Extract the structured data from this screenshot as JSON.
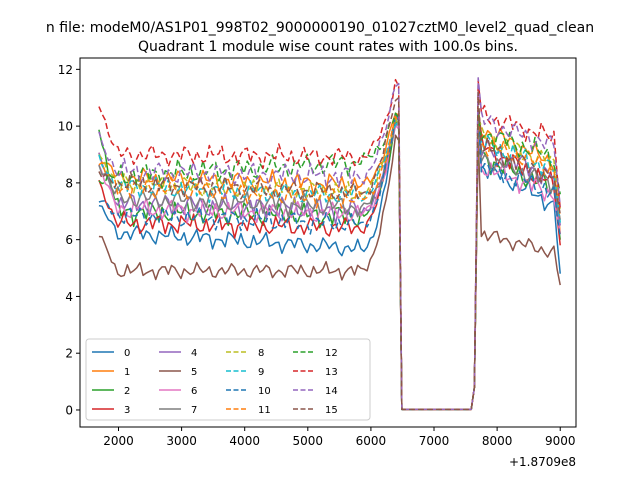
{
  "chart_data": {
    "type": "line",
    "suptitle": "n file: modeM0/AS1P01_998T02_9000000190_01027cztM0_level2_quad_clean",
    "title": "Quadrant 1 module wise count rates with 100.0s bins.",
    "xlabel": "",
    "ylabel": "",
    "x_offset_label": "+1.8709e8",
    "xlim": [
      1390,
      9250
    ],
    "ylim": [
      -0.6,
      12.4
    ],
    "xticks": [
      2000,
      3000,
      4000,
      5000,
      6000,
      7000,
      8000,
      9000
    ],
    "yticks": [
      0,
      2,
      4,
      6,
      8,
      10,
      12
    ],
    "xtick_labels": [
      "2000",
      "3000",
      "4000",
      "5000",
      "6000",
      "7000",
      "8000",
      "9000"
    ],
    "ytick_labels": [
      "0",
      "2",
      "4",
      "6",
      "8",
      "10",
      "12"
    ],
    "legend_location": "lower-left",
    "series": [
      {
        "name": "0",
        "color": "#1f77b4",
        "dash": "solid",
        "start": 7.2,
        "base": 6.3,
        "end": 5.6,
        "peak": 10.4,
        "post": 8.6,
        "post_slope": -1.5,
        "last": 4.8,
        "jitter": 0.35
      },
      {
        "name": "1",
        "color": "#ff7f0e",
        "dash": "solid",
        "start": 9.0,
        "base": 8.2,
        "end": 7.9,
        "peak": 10.6,
        "post": 9.9,
        "post_slope": -1.3,
        "last": 6.2,
        "jitter": 0.4
      },
      {
        "name": "2",
        "color": "#2ca02c",
        "dash": "solid",
        "start": 10.0,
        "base": 7.0,
        "end": 6.8,
        "peak": 10.2,
        "post": 8.9,
        "post_slope": -1.2,
        "last": 6.0,
        "jitter": 0.45
      },
      {
        "name": "3",
        "color": "#d62728",
        "dash": "solid",
        "start": 8.0,
        "base": 6.6,
        "end": 6.4,
        "peak": 10.6,
        "post": 9.3,
        "post_slope": -1.5,
        "last": 5.8,
        "jitter": 0.4
      },
      {
        "name": "4",
        "color": "#9467bd",
        "dash": "solid",
        "start": 9.0,
        "base": 7.3,
        "end": 7.0,
        "peak": 10.3,
        "post": 9.2,
        "post_slope": -1.1,
        "last": 6.5,
        "jitter": 0.45
      },
      {
        "name": "5",
        "color": "#8c564b",
        "dash": "solid",
        "start": 6.2,
        "base": 4.9,
        "end": 4.9,
        "peak": 9.7,
        "post": 6.2,
        "post_slope": -0.7,
        "last": 4.4,
        "jitter": 0.3
      },
      {
        "name": "6",
        "color": "#e377c2",
        "dash": "solid",
        "start": 8.6,
        "base": 7.1,
        "end": 6.9,
        "peak": 10.1,
        "post": 8.6,
        "post_slope": -1.1,
        "last": 6.2,
        "jitter": 0.4
      },
      {
        "name": "7",
        "color": "#7f7f7f",
        "dash": "solid",
        "start": 8.7,
        "base": 7.5,
        "end": 7.1,
        "peak": 10.3,
        "post": 8.9,
        "post_slope": -1.0,
        "last": 6.7,
        "jitter": 0.4
      },
      {
        "name": "8",
        "color": "#bcbd22",
        "dash": "dashed",
        "start": 9.0,
        "base": 8.0,
        "end": 7.6,
        "peak": 10.3,
        "post": 9.6,
        "post_slope": -1.0,
        "last": 7.0,
        "jitter": 0.4
      },
      {
        "name": "9",
        "color": "#17becf",
        "dash": "dashed",
        "start": 8.8,
        "base": 7.9,
        "end": 7.5,
        "peak": 10.4,
        "post": 9.4,
        "post_slope": -1.0,
        "last": 6.6,
        "jitter": 0.4
      },
      {
        "name": "10",
        "color": "#1f77b4",
        "dash": "dashed",
        "start": 7.4,
        "base": 6.9,
        "end": 6.5,
        "peak": 10.5,
        "post": 8.6,
        "post_slope": -1.0,
        "last": 6.1,
        "jitter": 0.4
      },
      {
        "name": "11",
        "color": "#ff7f0e",
        "dash": "dashed",
        "start": 8.7,
        "base": 7.9,
        "end": 7.4,
        "peak": 10.3,
        "post": 9.4,
        "post_slope": -1.0,
        "last": 6.8,
        "jitter": 0.4
      },
      {
        "name": "12",
        "color": "#2ca02c",
        "dash": "dashed",
        "start": 8.1,
        "base": 8.2,
        "end": 8.8,
        "peak": 10.5,
        "post": 9.8,
        "post_slope": -1.0,
        "last": 7.6,
        "jitter": 0.45
      },
      {
        "name": "13",
        "color": "#d62728",
        "dash": "dashed",
        "start": 10.8,
        "base": 9.0,
        "end": 8.9,
        "peak": 11.6,
        "post": 10.4,
        "post_slope": -0.9,
        "last": 7.1,
        "jitter": 0.4
      },
      {
        "name": "14",
        "color": "#9467bd",
        "dash": "dashed",
        "start": 9.6,
        "base": 8.4,
        "end": 8.2,
        "peak": 11.7,
        "post": 10.2,
        "post_slope": -1.0,
        "last": 7.2,
        "jitter": 0.45
      },
      {
        "name": "15",
        "color": "#8c564b",
        "dash": "dashed",
        "start": 8.3,
        "base": 8.0,
        "end": 7.6,
        "peak": 11.2,
        "post": 9.3,
        "post_slope": -1.2,
        "last": 6.9,
        "jitter": 0.4
      }
    ]
  }
}
